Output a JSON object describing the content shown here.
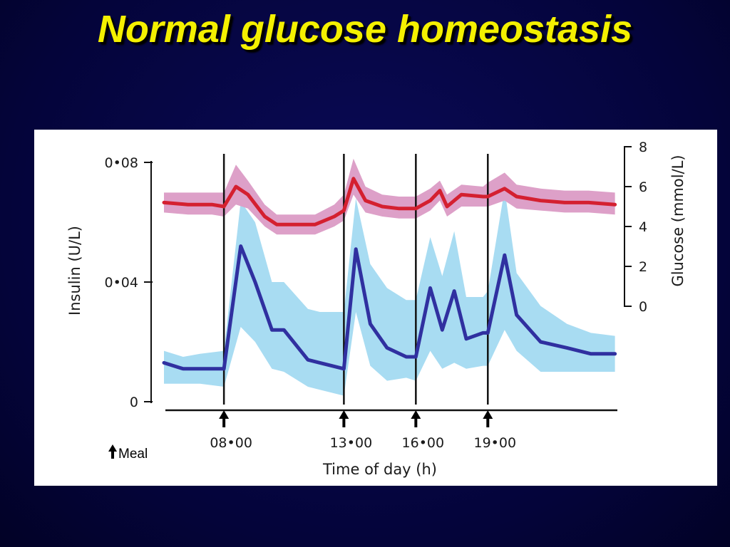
{
  "slide": {
    "title": "Normal glucose homeostasis"
  },
  "chart_data": {
    "type": "line",
    "title": "",
    "xlabel": "Time of day (h)",
    "ylabel_left": "Insulin (U/L)",
    "ylabel_right": "Glucose (mmol/L)",
    "x_range": [
      5.5,
      24.4
    ],
    "ylim_left": [
      0,
      0.08
    ],
    "ylim_right": [
      0,
      8
    ],
    "grid": false,
    "left_ticks": [
      {
        "v": 0,
        "label": "0"
      },
      {
        "v": 0.04,
        "label": "0•04"
      },
      {
        "v": 0.08,
        "label": "0•08"
      }
    ],
    "right_ticks": [
      {
        "v": 0,
        "label": "0"
      },
      {
        "v": 2,
        "label": "2"
      },
      {
        "v": 4,
        "label": "4"
      },
      {
        "v": 6,
        "label": "6"
      },
      {
        "v": 8,
        "label": "8"
      }
    ],
    "meal_times": [
      {
        "x": 8,
        "label": "08•00"
      },
      {
        "x": 13,
        "label": "13•00"
      },
      {
        "x": 16,
        "label": "16•00"
      },
      {
        "x": 19,
        "label": "19•00"
      }
    ],
    "legend": {
      "marker": "up-arrow",
      "label": "Meal"
    },
    "series": [
      {
        "axis": "right",
        "color": "#d42030",
        "band_color": "#dda0c8",
        "x": [
          5.5,
          6.5,
          7.5,
          8.0,
          8.5,
          9.0,
          9.7,
          10.2,
          11.2,
          11.8,
          12.6,
          13.0,
          13.4,
          13.9,
          14.6,
          15.3,
          16.0,
          16.6,
          17.0,
          17.3,
          17.9,
          18.8,
          19.0,
          19.7,
          20.2,
          21.2,
          22.2,
          23.2,
          24.3
        ],
        "y": [
          5.2,
          5.1,
          5.1,
          5.0,
          6.0,
          5.6,
          4.5,
          4.1,
          4.1,
          4.1,
          4.5,
          4.8,
          6.4,
          5.3,
          5.0,
          4.9,
          4.9,
          5.3,
          5.8,
          5.0,
          5.6,
          5.5,
          5.5,
          5.9,
          5.5,
          5.3,
          5.2,
          5.2,
          5.1
        ],
        "upper": [
          5.7,
          5.7,
          5.7,
          5.7,
          7.1,
          6.3,
          5.1,
          4.6,
          4.6,
          4.6,
          5.1,
          5.6,
          7.4,
          6.0,
          5.6,
          5.5,
          5.5,
          5.9,
          6.3,
          5.6,
          6.1,
          6.0,
          6.2,
          6.7,
          6.1,
          5.9,
          5.8,
          5.8,
          5.7
        ],
        "lower": [
          4.7,
          4.6,
          4.6,
          4.5,
          5.1,
          4.9,
          4.0,
          3.6,
          3.6,
          3.6,
          4.0,
          4.3,
          5.6,
          4.7,
          4.5,
          4.4,
          4.4,
          4.8,
          5.3,
          4.5,
          5.0,
          5.0,
          5.0,
          5.3,
          4.9,
          4.8,
          4.7,
          4.7,
          4.6
        ]
      },
      {
        "axis": "left",
        "color": "#3030a0",
        "band_color": "#a8dcf2",
        "x": [
          5.5,
          6.3,
          7.0,
          8.0,
          8.7,
          9.3,
          10.0,
          10.5,
          11.5,
          12.0,
          13.0,
          13.5,
          14.1,
          14.8,
          15.6,
          16.0,
          16.6,
          17.1,
          17.6,
          18.1,
          18.8,
          19.0,
          19.7,
          20.2,
          21.2,
          22.3,
          23.3,
          24.3
        ],
        "y": [
          0.013,
          0.011,
          0.011,
          0.011,
          0.052,
          0.04,
          0.024,
          0.024,
          0.014,
          0.013,
          0.011,
          0.051,
          0.026,
          0.018,
          0.015,
          0.015,
          0.038,
          0.024,
          0.037,
          0.021,
          0.023,
          0.023,
          0.049,
          0.029,
          0.02,
          0.018,
          0.016,
          0.016
        ],
        "upper": [
          0.017,
          0.015,
          0.016,
          0.017,
          0.067,
          0.06,
          0.04,
          0.04,
          0.031,
          0.03,
          0.03,
          0.068,
          0.046,
          0.038,
          0.034,
          0.034,
          0.055,
          0.042,
          0.057,
          0.035,
          0.035,
          0.037,
          0.071,
          0.043,
          0.032,
          0.026,
          0.023,
          0.022
        ],
        "lower": [
          0.006,
          0.006,
          0.006,
          0.005,
          0.025,
          0.02,
          0.011,
          0.01,
          0.005,
          0.004,
          0.002,
          0.03,
          0.012,
          0.007,
          0.008,
          0.007,
          0.017,
          0.011,
          0.013,
          0.011,
          0.012,
          0.012,
          0.024,
          0.017,
          0.01,
          0.01,
          0.01,
          0.01
        ]
      }
    ]
  }
}
